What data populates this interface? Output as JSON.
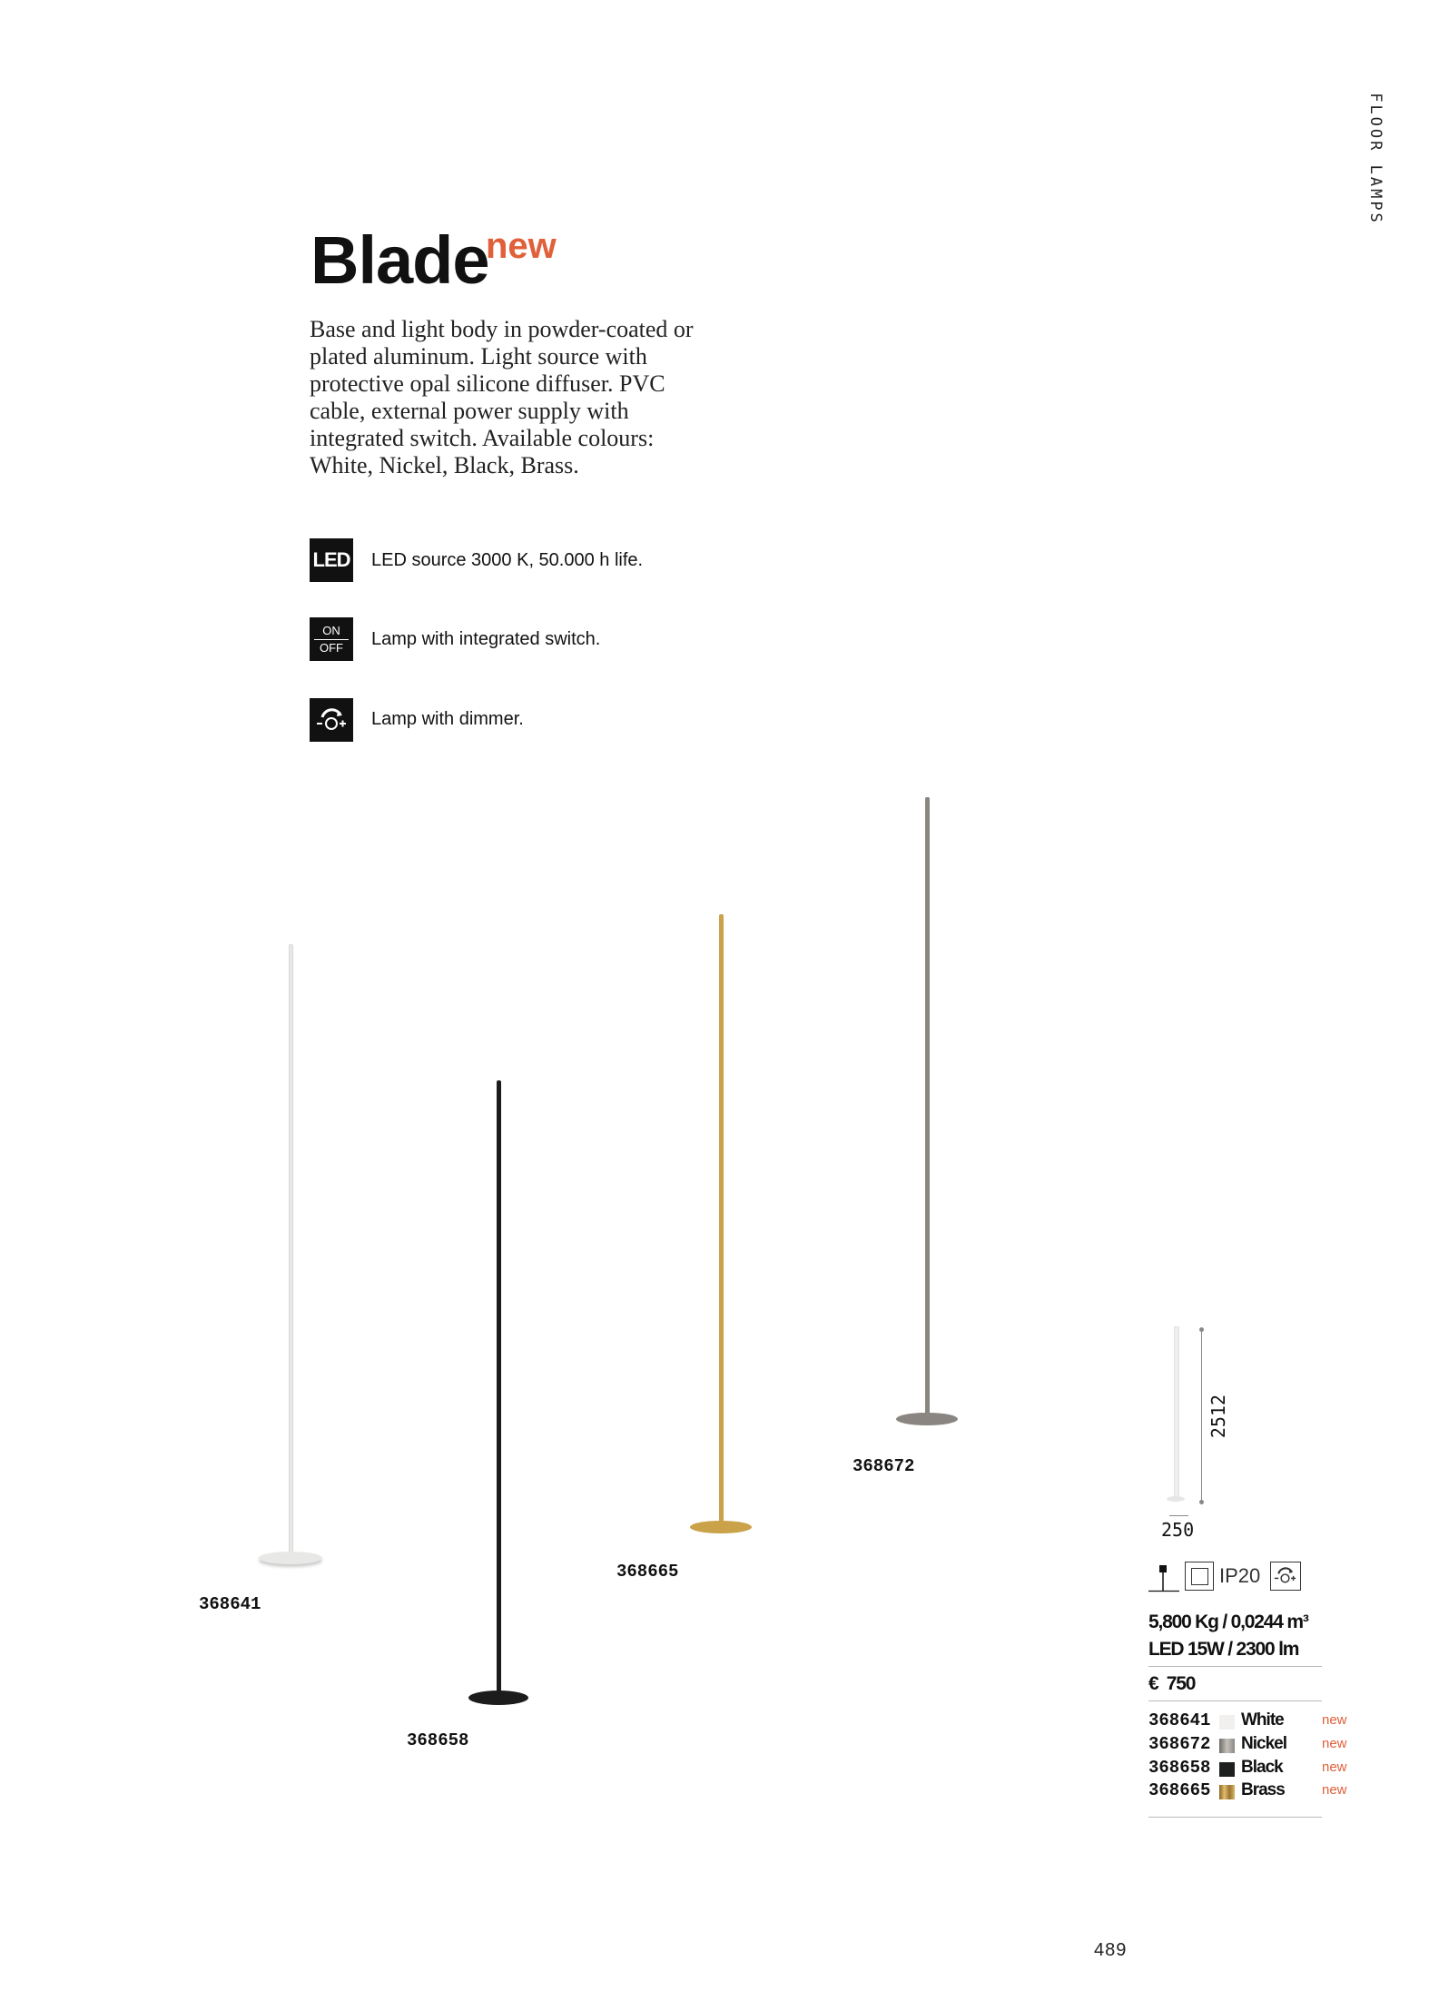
{
  "section_tab": "FLOOR LAMPS",
  "product": {
    "name": "Blade",
    "badge": "new",
    "description": "Base and light body in powder-coated or plated aluminum. Light source with protective opal silicone diffuser. PVC cable, external power supply with integrated switch. Available colours: White, Nickel, Black, Brass."
  },
  "features": [
    {
      "icon": "led-icon",
      "icon_text": "LED",
      "text": "LED source 3000 K, 50.000 h life."
    },
    {
      "icon": "on-off-switch-icon",
      "icon_text_top": "ON",
      "icon_text_bottom": "OFF",
      "text": "Lamp with integrated switch."
    },
    {
      "icon": "dimmer-icon",
      "text": "Lamp with dimmer."
    }
  ],
  "lamps": [
    {
      "code": "368641",
      "color": "#e8e8e6"
    },
    {
      "code": "368658",
      "color": "#1c1c1c"
    },
    {
      "code": "368665",
      "color": "#c9a24a"
    },
    {
      "code": "368672",
      "color": "#8a8580"
    }
  ],
  "specs": {
    "height": "2512",
    "base_diameter": "250",
    "ip_rating": "IP20",
    "weight_volume": "5,800 Kg / 0,0244 m³",
    "power": "LED 15W / 2300 lm",
    "price": "€  750",
    "variants": [
      {
        "code": "368641",
        "color_name": "White",
        "swatch": "#f2f0ee",
        "badge": "new"
      },
      {
        "code": "368672",
        "color_name": "Nickel",
        "swatch": "#9a958f",
        "badge": "new"
      },
      {
        "code": "368658",
        "color_name": "Black",
        "swatch": "#1e1f1f",
        "badge": "new"
      },
      {
        "code": "368665",
        "color_name": "Brass",
        "swatch": "#b8903f",
        "badge": "new"
      }
    ]
  },
  "page_number": "489",
  "accent_color": "#e0603a"
}
